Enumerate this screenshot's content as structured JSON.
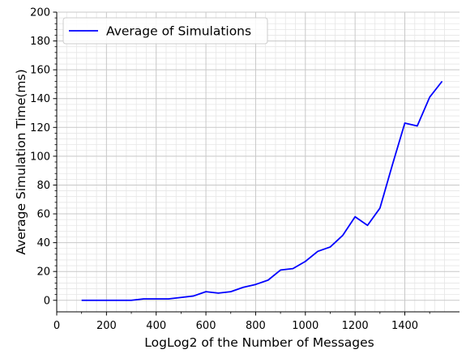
{
  "chart_data": {
    "type": "line",
    "xlabel": "LogLog2 of the Number of Messages",
    "ylabel": "Average Simulation Time(ms)",
    "xlim": [
      0,
      1620
    ],
    "ylim": [
      -8,
      200
    ],
    "x_ticks": [
      0,
      200,
      400,
      600,
      800,
      1000,
      1200,
      1400
    ],
    "y_ticks": [
      0,
      20,
      40,
      60,
      80,
      100,
      120,
      140,
      160,
      180,
      200
    ],
    "grid": true,
    "legend_position": "top-left",
    "series": [
      {
        "name": "Average of Simulations",
        "color": "#0000ff",
        "x": [
          100,
          150,
          200,
          250,
          300,
          350,
          400,
          450,
          500,
          550,
          600,
          650,
          700,
          750,
          800,
          850,
          900,
          950,
          1000,
          1050,
          1100,
          1150,
          1200,
          1250,
          1300,
          1350,
          1400,
          1450,
          1500,
          1550
        ],
        "y": [
          0,
          0,
          0,
          0,
          0,
          1,
          1,
          1,
          2,
          3,
          6,
          5,
          6,
          9,
          11,
          14,
          21,
          22,
          27,
          34,
          37,
          45,
          58,
          52,
          64,
          94,
          123,
          121,
          141,
          152
        ]
      }
    ]
  }
}
